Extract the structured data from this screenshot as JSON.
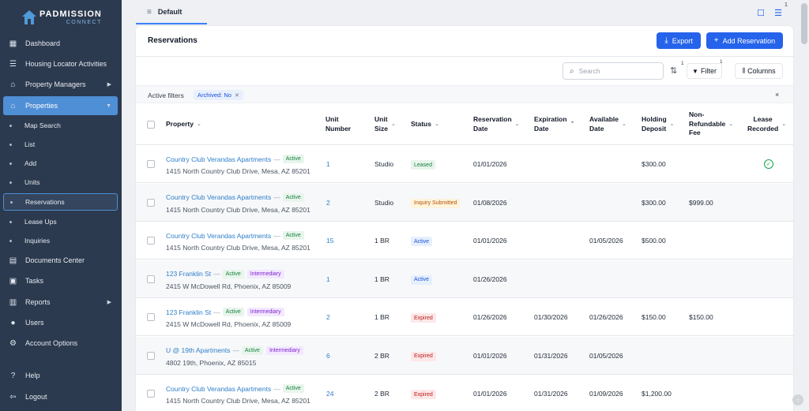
{
  "brand": {
    "line1": "PADMISSION",
    "line2": "CONNECT"
  },
  "sidebar": {
    "items": [
      {
        "label": "Dashboard",
        "icon": "dashboard-icon"
      },
      {
        "label": "Housing Locator Activities",
        "icon": "list-icon"
      },
      {
        "label": "Property Managers",
        "icon": "home-user-icon",
        "has_arrow": true
      },
      {
        "label": "Properties",
        "icon": "home-icon",
        "active": true,
        "expanded": true
      },
      {
        "label": "Documents Center",
        "icon": "document-icon"
      },
      {
        "label": "Tasks",
        "icon": "clipboard-icon"
      },
      {
        "label": "Reports",
        "icon": "chart-icon",
        "has_arrow": true
      },
      {
        "label": "Users",
        "icon": "users-icon"
      },
      {
        "label": "Account Options",
        "icon": "gear-icon"
      },
      {
        "label": "Help",
        "icon": "help-icon"
      },
      {
        "label": "Logout",
        "icon": "logout-icon"
      }
    ],
    "subitems": [
      "Map Search",
      "List",
      "Add",
      "Units",
      "Reservations",
      "Lease Ups",
      "Inquiries"
    ],
    "selected_subitem": "Reservations"
  },
  "tabbar": {
    "tab_label": "Default",
    "badge": "1"
  },
  "header": {
    "title": "Reservations",
    "export_label": "Export",
    "add_label": "Add Reservation"
  },
  "toolbar": {
    "search_placeholder": "Search",
    "sort_badge": "1",
    "filter_label": "Filter",
    "filter_badge": "1",
    "columns_label": "Columns"
  },
  "filters": {
    "label": "Active filters",
    "chip": "Archived: No",
    "clear": "×"
  },
  "table": {
    "columns": {
      "property": "Property",
      "unit_number": [
        "Unit",
        "Number"
      ],
      "unit_size": [
        "Unit",
        "Size"
      ],
      "status": "Status",
      "reservation_date": [
        "Reservation",
        "Date"
      ],
      "expiration_date": [
        "Expiration",
        "Date"
      ],
      "available_date": [
        "Available",
        "Date"
      ],
      "holding_deposit": [
        "Holding",
        "Deposit"
      ],
      "non_refundable_fee": [
        "Non-",
        "Refundable",
        "Fee"
      ],
      "lease_recorded": [
        "Lease",
        "Recorded"
      ]
    },
    "rows": [
      {
        "property": "Country Club Verandas Apartments",
        "tags": [
          "Active"
        ],
        "address": "1415 North Country Club Drive, Mesa, AZ 85201",
        "unit": "1",
        "size": "Studio",
        "status": "Leased",
        "status_kind": "leased",
        "reservation_date": "01/01/2026",
        "expiration_date": "",
        "available_date": "",
        "holding_deposit": "$300.00",
        "fee": "",
        "lease_recorded": true
      },
      {
        "property": "Country Club Verandas Apartments",
        "tags": [
          "Active"
        ],
        "address": "1415 North Country Club Drive, Mesa, AZ 85201",
        "unit": "2",
        "size": "Studio",
        "status": "Inquiry Submitted",
        "status_kind": "inquiry",
        "reservation_date": "01/08/2026",
        "expiration_date": "",
        "available_date": "",
        "holding_deposit": "$300.00",
        "fee": "$999.00",
        "lease_recorded": false
      },
      {
        "property": "Country Club Verandas Apartments",
        "tags": [
          "Active"
        ],
        "address": "1415 North Country Club Drive, Mesa, AZ 85201",
        "unit": "15",
        "size": "1 BR",
        "status": "Active",
        "status_kind": "active",
        "reservation_date": "01/01/2026",
        "expiration_date": "",
        "available_date": "01/05/2026",
        "holding_deposit": "$500.00",
        "fee": "",
        "lease_recorded": false
      },
      {
        "property": "123 Franklin St",
        "tags": [
          "Active",
          "Intermediary"
        ],
        "address": "2415 W McDowell Rd, Phoenix, AZ 85009",
        "unit": "1",
        "size": "1 BR",
        "status": "Active",
        "status_kind": "active",
        "reservation_date": "01/26/2026",
        "expiration_date": "",
        "available_date": "",
        "holding_deposit": "",
        "fee": "",
        "lease_recorded": false
      },
      {
        "property": "123 Franklin St",
        "tags": [
          "Active",
          "Intermediary"
        ],
        "address": "2415 W McDowell Rd, Phoenix, AZ 85009",
        "unit": "2",
        "size": "1 BR",
        "status": "Expired",
        "status_kind": "expired",
        "reservation_date": "01/26/2026",
        "expiration_date": "01/30/2026",
        "available_date": "01/26/2026",
        "holding_deposit": "$150.00",
        "fee": "$150.00",
        "lease_recorded": false
      },
      {
        "property": "U @ 19th Apartments",
        "tags": [
          "Active",
          "Intermediary"
        ],
        "address": "4802 19th, Phoenix, AZ 85015",
        "unit": "6",
        "size": "2 BR",
        "status": "Expired",
        "status_kind": "expired",
        "reservation_date": "01/01/2026",
        "expiration_date": "01/31/2026",
        "available_date": "01/05/2026",
        "holding_deposit": "",
        "fee": "",
        "lease_recorded": false
      },
      {
        "property": "Country Club Verandas Apartments",
        "tags": [
          "Active"
        ],
        "address": "1415 North Country Club Drive, Mesa, AZ 85201",
        "unit": "24",
        "size": "2 BR",
        "status": "Expired",
        "status_kind": "expired",
        "reservation_date": "01/01/2026",
        "expiration_date": "01/31/2026",
        "available_date": "01/09/2026",
        "holding_deposit": "$1,200.00",
        "fee": "",
        "lease_recorded": false
      }
    ]
  }
}
